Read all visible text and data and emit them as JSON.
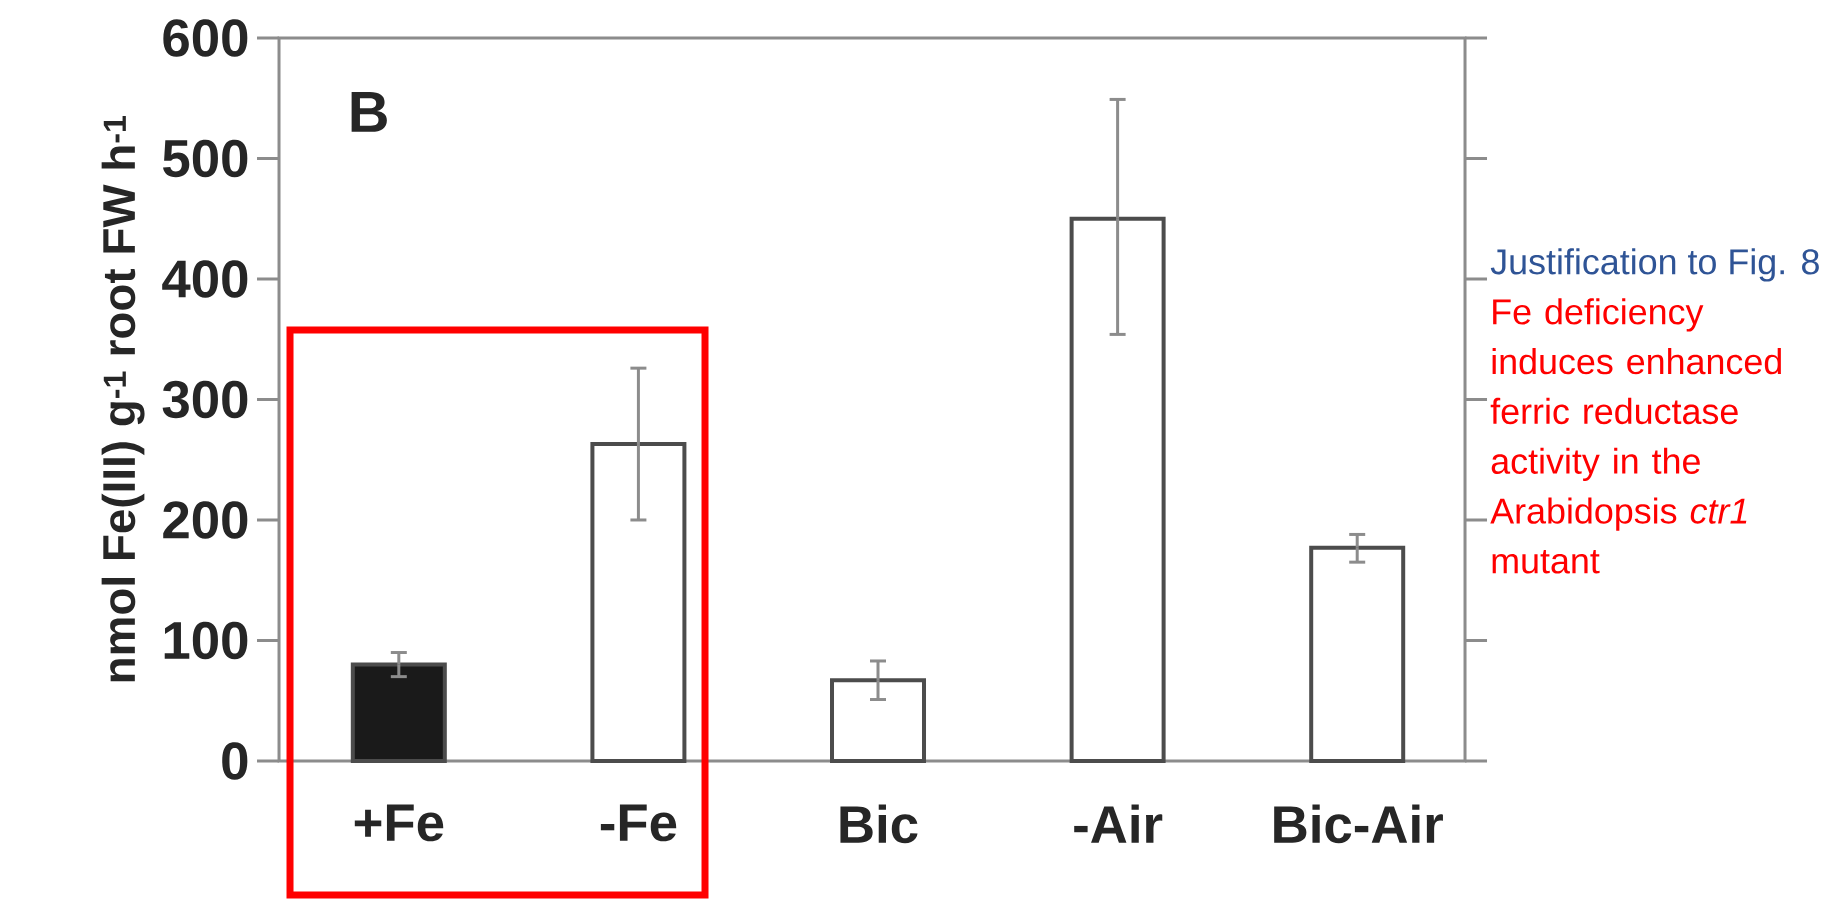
{
  "chart_data": {
    "type": "bar",
    "ylabel": "nmol Fe(III) g$^{-1}$ root FW h$^{-1}$",
    "categories": [
      "+Fe",
      "-Fe",
      "Bic",
      "-Air",
      "Bic-Air"
    ],
    "values": [
      80,
      263,
      67,
      450,
      177
    ],
    "colors": [
      "#1a1a1a",
      "#ffffff",
      "#ffffff",
      "#ffffff",
      "#ffffff"
    ],
    "errors": [
      10,
      [
        200,
        326
      ],
      16,
      [
        354,
        549
      ],
      [
        165,
        188
      ]
    ],
    "ylim": [
      0,
      600
    ],
    "yticks": [
      0,
      100,
      200,
      300,
      400,
      500,
      600
    ],
    "grid": false,
    "annotations": [
      "B",
      "Justification to Fig. 8",
      "Fe deficiency induces enhanced ferric reductase activity in the Arabidopsis *ctr1* mutant"
    ]
  }
}
